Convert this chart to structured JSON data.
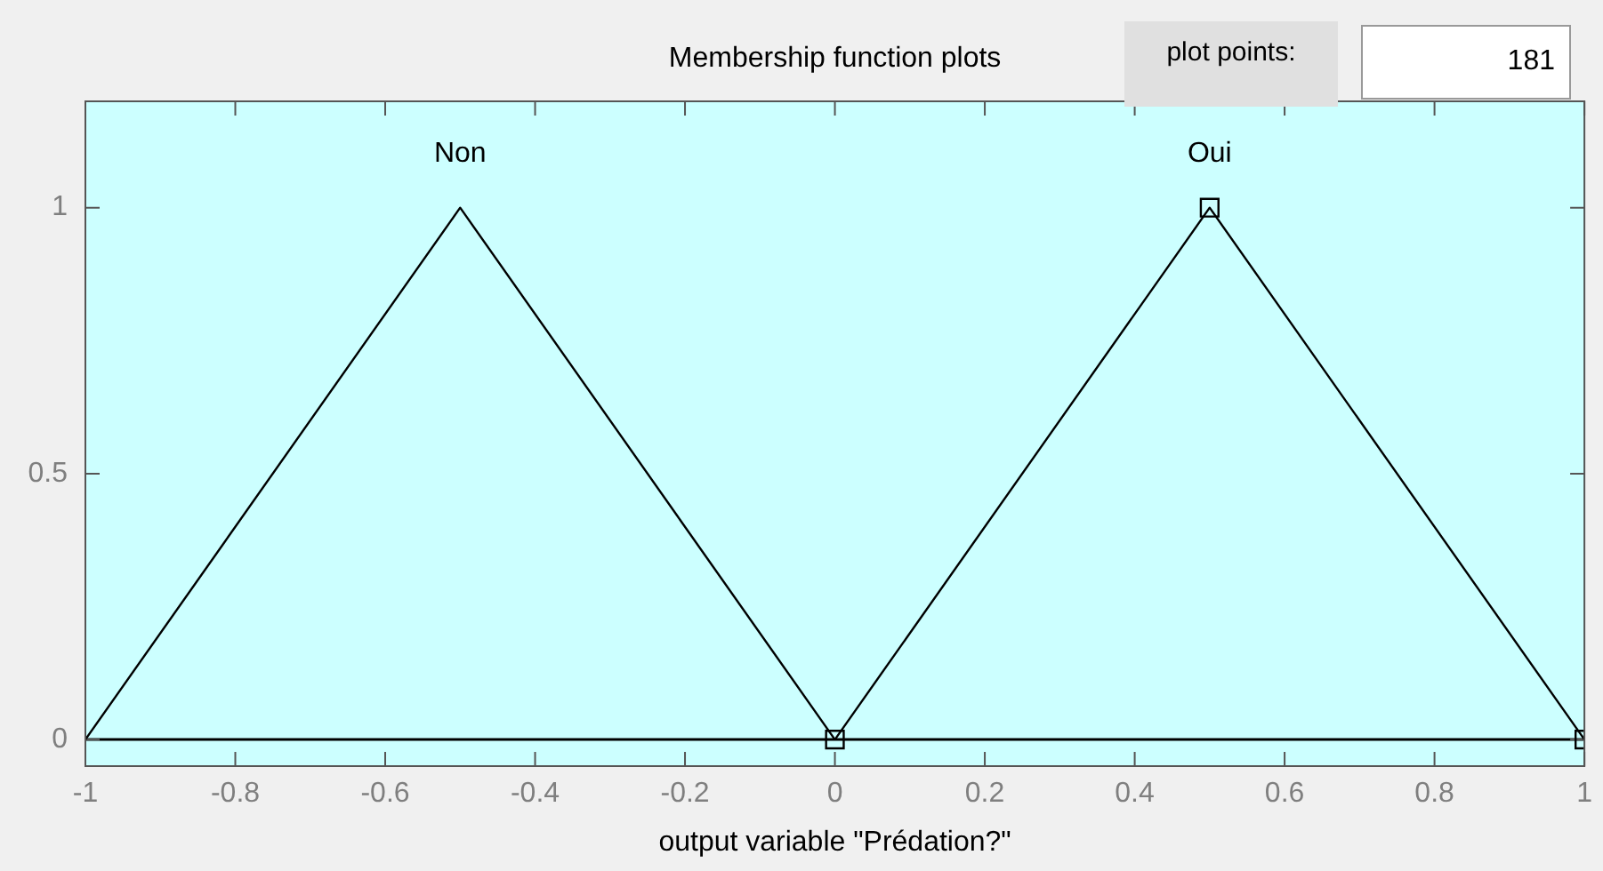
{
  "chart_data": {
    "type": "line",
    "title": "Membership function plots",
    "xlabel": "output variable \"Prédation?\"",
    "annotations": [
      "plot points:",
      "181"
    ],
    "series": [
      {
        "name": "Non",
        "color": "#000000",
        "x": [
          -1,
          -0.5,
          0
        ],
        "values": [
          0,
          1,
          0
        ],
        "marker": "none"
      },
      {
        "name": "Oui",
        "color": "#000000",
        "x": [
          0,
          0.5,
          1
        ],
        "values": [
          0,
          1,
          0
        ],
        "marker": "square"
      }
    ],
    "xlim": [
      -1,
      1
    ],
    "xticks": [
      -1,
      -0.8,
      -0.6,
      -0.4,
      -0.2,
      0,
      0.2,
      0.4,
      0.6,
      0.8,
      1
    ],
    "ylim": [
      -0.05,
      1.2
    ],
    "yticks": [
      0,
      0.5,
      1
    ],
    "ref_lines": [
      {
        "axis": "y",
        "value": 0,
        "color": "#000000"
      }
    ],
    "grid": false,
    "legend": false,
    "line_style": "solid"
  }
}
